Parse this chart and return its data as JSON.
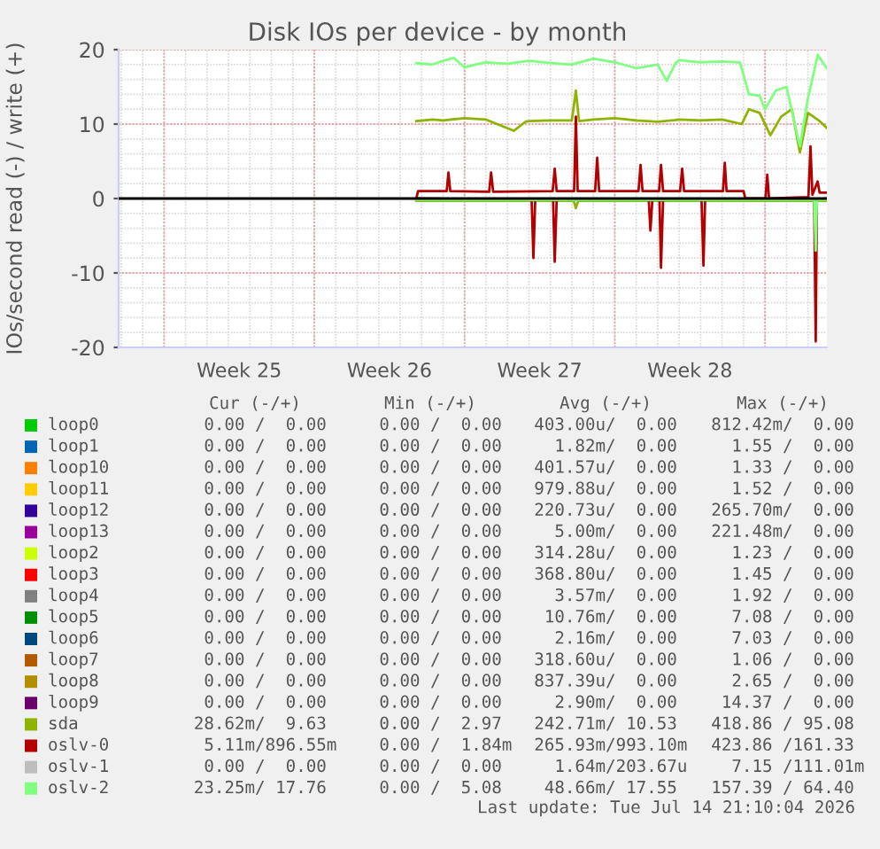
{
  "chart_data": {
    "type": "line",
    "title": "Disk IOs per device - by month",
    "ylabel": "IOs/second read (-) / write (+)",
    "xlim": [
      "2026-06-11T21:10",
      "2026-07-14T21:10"
    ],
    "xticks": [
      {
        "value": "2026-06-14",
        "label": null
      },
      {
        "value": "2026-06-17T12:00",
        "label": "Week 25"
      },
      {
        "value": "2026-06-21",
        "label": null
      },
      {
        "value": "2026-06-24T12:00",
        "label": "Week 26"
      },
      {
        "value": "2026-06-28",
        "label": null
      },
      {
        "value": "2026-07-01T12:00",
        "label": "Week 27"
      },
      {
        "value": "2026-07-05",
        "label": null
      },
      {
        "value": "2026-07-08T12:00",
        "label": "Week 28"
      },
      {
        "value": "2026-07-12",
        "label": null
      }
    ],
    "ylim": [
      -20,
      20
    ],
    "yticks": [
      -20,
      -10,
      0,
      10,
      20
    ],
    "grid": true,
    "legend": "bottom",
    "line_style": "solid",
    "marker": "none",
    "ref_lines": [
      {
        "axis": "y",
        "value": 0,
        "color": "#000000"
      }
    ],
    "series": [
      {
        "name": "loop0",
        "color": "#00cc00"
      },
      {
        "name": "loop1",
        "color": "#0066b3"
      },
      {
        "name": "loop10",
        "color": "#ff8000"
      },
      {
        "name": "loop11",
        "color": "#ffcc00"
      },
      {
        "name": "loop12",
        "color": "#330099"
      },
      {
        "name": "loop13",
        "color": "#990099"
      },
      {
        "name": "loop2",
        "color": "#ccff00"
      },
      {
        "name": "loop3",
        "color": "#ff0000"
      },
      {
        "name": "loop4",
        "color": "#808080"
      },
      {
        "name": "loop5",
        "color": "#008f00"
      },
      {
        "name": "loop6",
        "color": "#00487d"
      },
      {
        "name": "loop7",
        "color": "#b35a00"
      },
      {
        "name": "loop8",
        "color": "#b38f00"
      },
      {
        "name": "loop9",
        "color": "#6b006b"
      },
      {
        "name": "sda",
        "color": "#8fb300",
        "x": [
          "2026-06-25T18:00",
          "2026-06-26T12:00",
          "2026-06-27T00:00",
          "2026-06-28T00:00",
          "2026-06-29T00:00",
          "2026-06-30T07:00",
          "2026-06-30T20:00",
          "2026-07-01T00:00",
          "2026-07-02T00:00",
          "2026-07-03T00:00",
          "2026-07-03T04:30",
          "2026-07-03T08:00",
          "2026-07-04T00:00",
          "2026-07-05T00:00",
          "2026-07-06T00:00",
          "2026-07-07T00:00",
          "2026-07-08T00:00",
          "2026-07-09T00:00",
          "2026-07-10T00:00",
          "2026-07-10T22:00",
          "2026-07-11T06:00",
          "2026-07-11T18:00",
          "2026-07-12T06:00",
          "2026-07-12T18:00",
          "2026-07-13T06:00",
          "2026-07-13T15:00",
          "2026-07-14T00:00",
          "2026-07-14T12:00",
          "2026-07-14T21:00"
        ],
        "values": [
          10.4,
          10.6,
          10.5,
          10.8,
          10.6,
          9.1,
          10.3,
          10.4,
          10.5,
          10.5,
          14.5,
          10.4,
          10.6,
          10.8,
          10.5,
          10.3,
          10.6,
          10.5,
          10.6,
          10.0,
          12.0,
          11.5,
          8.5,
          11.0,
          12.0,
          6.2,
          11.5,
          10.5,
          9.5
        ]
      },
      {
        "name": "oslv-0",
        "color": "#b30000",
        "x": [
          "2026-06-25T18:00",
          "2026-06-25T20:00",
          "2026-06-27T04:00",
          "2026-06-27T06:00",
          "2026-06-27T08:00",
          "2026-06-29T03:30",
          "2026-06-29T05:40",
          "2026-06-29T08:00",
          "2026-07-02T02:30",
          "2026-07-02T04:50",
          "2026-07-02T07:00",
          "2026-07-03T02:30",
          "2026-07-03T04:30",
          "2026-07-03T06:30",
          "2026-07-04T02:00",
          "2026-07-04T04:20",
          "2026-07-04T06:30",
          "2026-07-06T02:30",
          "2026-07-06T04:50",
          "2026-07-06T07:00",
          "2026-07-07T01:30",
          "2026-07-07T03:40",
          "2026-07-07T06:00",
          "2026-07-08T01:00",
          "2026-07-08T03:20",
          "2026-07-08T05:30",
          "2026-07-10T01:00",
          "2026-07-10T03:00",
          "2026-07-10T05:00",
          "2026-07-11T00:00",
          "2026-07-11T02:00",
          "2026-07-12T00:30",
          "2026-07-12T02:30",
          "2026-07-12T04:30",
          "2026-07-14T00:30",
          "2026-07-14T02:50",
          "2026-07-14T05:00",
          "2026-07-14T10:50",
          "2026-07-14T13:00",
          "2026-07-14T21:00"
        ],
        "values": [
          0.0,
          1.0,
          1.0,
          3.5,
          1.0,
          0.9,
          3.5,
          0.9,
          1.0,
          4.0,
          1.0,
          1.0,
          11.0,
          1.0,
          1.0,
          5.5,
          1.0,
          1.0,
          4.5,
          1.0,
          1.0,
          4.5,
          1.0,
          1.0,
          4.0,
          1.0,
          1.0,
          4.8,
          1.0,
          1.0,
          0.0,
          0.0,
          3.2,
          0.0,
          0.2,
          7.0,
          0.5,
          2.3,
          0.8,
          0.8
        ]
      },
      {
        "name": "oslv-1",
        "color": "#bebebe"
      },
      {
        "name": "oslv-2",
        "color": "#80ff80",
        "x": [
          "2026-06-25T18:00",
          "2026-06-26T12:00",
          "2026-06-27T00:00",
          "2026-06-27T12:00",
          "2026-06-28T00:00",
          "2026-06-28T12:00",
          "2026-06-29T00:00",
          "2026-06-30T00:00",
          "2026-07-01T00:00",
          "2026-07-02T00:00",
          "2026-07-03T00:00",
          "2026-07-04T00:00",
          "2026-07-05T00:00",
          "2026-07-06T00:00",
          "2026-07-07T00:00",
          "2026-07-07T10:00",
          "2026-07-07T20:00",
          "2026-07-08T00:00",
          "2026-07-09T00:00",
          "2026-07-10T00:00",
          "2026-07-10T20:00",
          "2026-07-11T06:00",
          "2026-07-11T18:00",
          "2026-07-12T00:00",
          "2026-07-12T12:00",
          "2026-07-13T00:00",
          "2026-07-13T15:00",
          "2026-07-14T00:00",
          "2026-07-14T11:00",
          "2026-07-14T21:00"
        ],
        "values": [
          18.2,
          18.0,
          18.5,
          18.9,
          17.6,
          18.0,
          18.3,
          18.1,
          18.5,
          18.2,
          18.0,
          18.8,
          18.3,
          17.5,
          18.0,
          15.8,
          18.2,
          18.6,
          18.3,
          18.4,
          18.3,
          14.0,
          13.8,
          12.0,
          14.5,
          15.0,
          7.0,
          13.5,
          19.3,
          17.5
        ]
      },
      {
        "color": "#8fb300",
        "x": [
          "2026-06-25T18:00",
          "2026-07-03T02:00",
          "2026-07-03T04:30",
          "2026-07-03T07:00",
          "2026-07-14T21:00"
        ],
        "values": [
          -0.3,
          -0.3,
          -1.3,
          -0.3,
          -0.3
        ]
      },
      {
        "color": "#b30000",
        "x": [
          "2026-06-25T18:00",
          "2026-07-01T03:00",
          "2026-07-01T05:00",
          "2026-07-01T07:00",
          "2026-07-02T03:00",
          "2026-07-02T04:50",
          "2026-07-02T07:00",
          "2026-07-06T14:00",
          "2026-07-06T15:50",
          "2026-07-06T18:00",
          "2026-07-07T02:00",
          "2026-07-07T03:40",
          "2026-07-07T06:00",
          "2026-07-09T01:00",
          "2026-07-09T03:10",
          "2026-07-09T05:00",
          "2026-07-14T07:00",
          "2026-07-14T08:40",
          "2026-07-14T10:00",
          "2026-07-14T21:00"
        ],
        "values": [
          0,
          -0.2,
          -8.0,
          -0.2,
          -0.2,
          -8.5,
          -0.2,
          -0.2,
          -4.3,
          -0.2,
          -0.2,
          -9.3,
          -0.2,
          -0.2,
          -9.0,
          -0.2,
          -0.2,
          -19.2,
          -0.2,
          0
        ]
      },
      {
        "color": "#80ff80",
        "x": [
          "2026-06-25T18:00",
          "2026-07-14T07:00",
          "2026-07-14T08:40",
          "2026-07-14T10:00",
          "2026-07-14T21:00"
        ],
        "values": [
          -0.2,
          -0.2,
          -7.0,
          -0.2,
          -0.2
        ]
      }
    ],
    "annotations": [
      "Cur (-/+)",
      "Min (-/+)",
      "Avg (-/+)",
      "Max (-/+)",
      "0.00 /  0.00",
      "0.00 /  0.00",
      "403.00u/  0.00",
      "812.42m/  0.00",
      "0.00 /  0.00",
      "0.00 /  0.00",
      "1.82m/  0.00",
      "1.55 /  0.00",
      "0.00 /  0.00",
      "0.00 /  0.00",
      "401.57u/  0.00",
      "1.33 /  0.00",
      "0.00 /  0.00",
      "0.00 /  0.00",
      "979.88u/  0.00",
      "1.52 /  0.00",
      "0.00 /  0.00",
      "0.00 /  0.00",
      "220.73u/  0.00",
      "265.70m/  0.00",
      "0.00 /  0.00",
      "0.00 /  0.00",
      "5.00m/  0.00",
      "221.48m/  0.00",
      "0.00 /  0.00",
      "0.00 /  0.00",
      "314.28u/  0.00",
      "1.23 /  0.00",
      "0.00 /  0.00",
      "0.00 /  0.00",
      "368.80u/  0.00",
      "1.45 /  0.00",
      "0.00 /  0.00",
      "0.00 /  0.00",
      "3.57m/  0.00",
      "1.92 /  0.00",
      "0.00 /  0.00",
      "0.00 /  0.00",
      "10.76m/  0.00",
      "7.08 /  0.00",
      "0.00 /  0.00",
      "0.00 /  0.00",
      "2.16m/  0.00",
      "7.03 /  0.00",
      "0.00 /  0.00",
      "0.00 /  0.00",
      "318.60u/  0.00",
      "1.06 /  0.00",
      "0.00 /  0.00",
      "0.00 /  0.00",
      "837.39u/  0.00",
      "2.65 /  0.00",
      "0.00 /  0.00",
      "0.00 /  0.00",
      "2.90m/  0.00",
      "14.37 /  0.00",
      "28.62m/  9.63",
      "0.00 /  2.97",
      "242.71m/ 10.53",
      "418.86 / 95.08",
      "5.11m/896.55m",
      "0.00 /  1.84m",
      "265.93m/993.10m",
      "423.86 /161.33",
      "0.00 /  0.00",
      "0.00 /  0.00",
      "1.64m/203.67u",
      "7.15 /111.01m",
      "23.25m/ 17.76",
      "0.00 /  5.08",
      "48.66m/ 17.55",
      "157.39 / 64.40",
      "Last update: Tue Jul 14 21:10:04 2026"
    ]
  }
}
